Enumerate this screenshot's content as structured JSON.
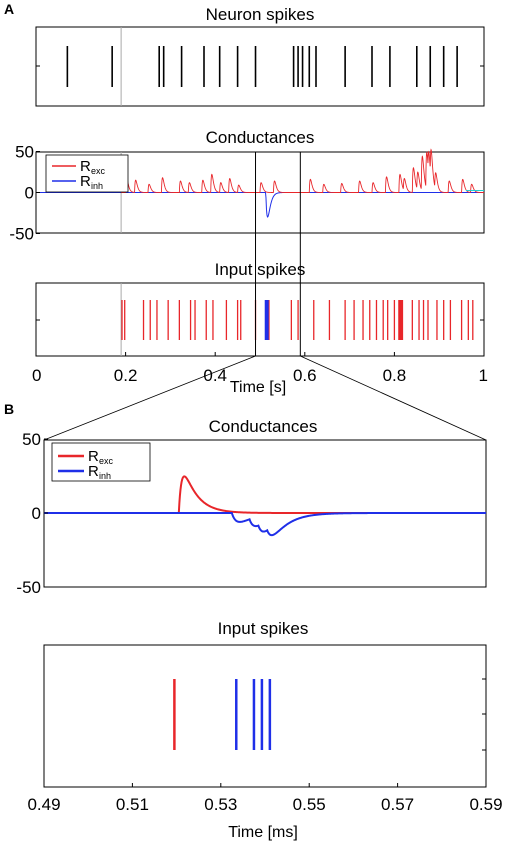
{
  "panels": {
    "A": "A",
    "B": "B"
  },
  "legend": {
    "exc_main": "R",
    "exc_sub": "exc",
    "inh_main": "R",
    "inh_sub": "inh"
  },
  "colors": {
    "exc": "#e8262a",
    "inh": "#1f2fe8",
    "neuron": "#000000",
    "frame": "#000000",
    "inset": "#aaaaaa",
    "extra": "#22cccc"
  },
  "chart_data": [
    {
      "id": "A1",
      "type": "raster",
      "title": "Neuron spikes",
      "xlim": [
        0,
        1
      ],
      "spikes": [
        0.07,
        0.17,
        0.275,
        0.285,
        0.325,
        0.375,
        0.41,
        0.45,
        0.49,
        0.575,
        0.585,
        0.595,
        0.61,
        0.625,
        0.69,
        0.75,
        0.79,
        0.85,
        0.88,
        0.91,
        0.94
      ],
      "inset_line_x": 0.19
    },
    {
      "id": "A2",
      "type": "line",
      "title": "Conductances",
      "xlim": [
        0,
        1
      ],
      "ylim": [
        -50,
        50
      ],
      "yticks": [
        50,
        0,
        -50
      ],
      "exc_events": [
        [
          0.2,
          17
        ],
        [
          0.22,
          15
        ],
        [
          0.25,
          10
        ],
        [
          0.28,
          18
        ],
        [
          0.32,
          14
        ],
        [
          0.34,
          12
        ],
        [
          0.37,
          15
        ],
        [
          0.39,
          22
        ],
        [
          0.41,
          12
        ],
        [
          0.43,
          17
        ],
        [
          0.45,
          9
        ],
        [
          0.5,
          12
        ],
        [
          0.53,
          14
        ],
        [
          0.61,
          16
        ],
        [
          0.64,
          10
        ],
        [
          0.68,
          11
        ],
        [
          0.72,
          14
        ],
        [
          0.75,
          12
        ],
        [
          0.78,
          19
        ],
        [
          0.81,
          22
        ],
        [
          0.82,
          15
        ],
        [
          0.84,
          30
        ],
        [
          0.85,
          22
        ],
        [
          0.86,
          42
        ],
        [
          0.87,
          45
        ],
        [
          0.875,
          28
        ],
        [
          0.88,
          35
        ],
        [
          0.89,
          20
        ],
        [
          0.92,
          14
        ],
        [
          0.95,
          16
        ],
        [
          0.97,
          10
        ]
      ],
      "inh_events": [
        [
          0.513,
          -30
        ]
      ],
      "inset_line_x": 0.19,
      "zoom_window": [
        0.49,
        0.59
      ]
    },
    {
      "id": "A3",
      "type": "raster",
      "title": "Input spikes",
      "xlim": [
        0,
        1
      ],
      "xlabel": "Time [s]",
      "xticks": [
        0,
        0.2,
        0.4,
        0.6,
        0.8,
        1
      ],
      "xtick_labels": [
        "0",
        "0.2",
        "0.4",
        "0.6",
        "0.8",
        "1"
      ],
      "exc_spikes": [
        0.192,
        0.198,
        0.24,
        0.255,
        0.27,
        0.295,
        0.32,
        0.345,
        0.355,
        0.38,
        0.395,
        0.425,
        0.45,
        0.457,
        0.49,
        0.52,
        0.57,
        0.585,
        0.62,
        0.655,
        0.69,
        0.71,
        0.73,
        0.745,
        0.76,
        0.775,
        0.785,
        0.8,
        0.81,
        0.812,
        0.814,
        0.816,
        0.818,
        0.84,
        0.855,
        0.865,
        0.875,
        0.895,
        0.91,
        0.925,
        0.95,
        0.965,
        0.975
      ],
      "inh_spikes": [
        0.512,
        0.514,
        0.516,
        0.518
      ],
      "inset_line_x": 0.19,
      "zoom_window": [
        0.49,
        0.59
      ]
    },
    {
      "id": "B1",
      "type": "line",
      "title": "Conductances",
      "xlim": [
        0.49,
        0.59
      ],
      "ylim": [
        -50,
        50
      ],
      "yticks": [
        50,
        0,
        -50
      ],
      "exc": {
        "onset": 0.5205,
        "tau_rise": 0.0008,
        "tau_decay": 0.003,
        "peak": 25
      },
      "inh_onsets": [
        0.5325,
        0.5365,
        0.5385,
        0.5405
      ],
      "inh_unit": -9,
      "inh_tau_rise": 0.0015,
      "inh_tau_decay": 0.0035
    },
    {
      "id": "B2",
      "type": "raster",
      "title": "Input spikes",
      "xlim": [
        0.49,
        0.59
      ],
      "xlabel": "Time [ms]",
      "xticks": [
        0.49,
        0.51,
        0.53,
        0.55,
        0.57,
        0.59
      ],
      "xtick_labels": [
        "0.49",
        "0.51",
        "0.53",
        "0.55",
        "0.57",
        "0.59"
      ],
      "exc_spikes": [
        0.5195
      ],
      "inh_spikes": [
        0.5335,
        0.5375,
        0.5393,
        0.5411
      ]
    }
  ]
}
